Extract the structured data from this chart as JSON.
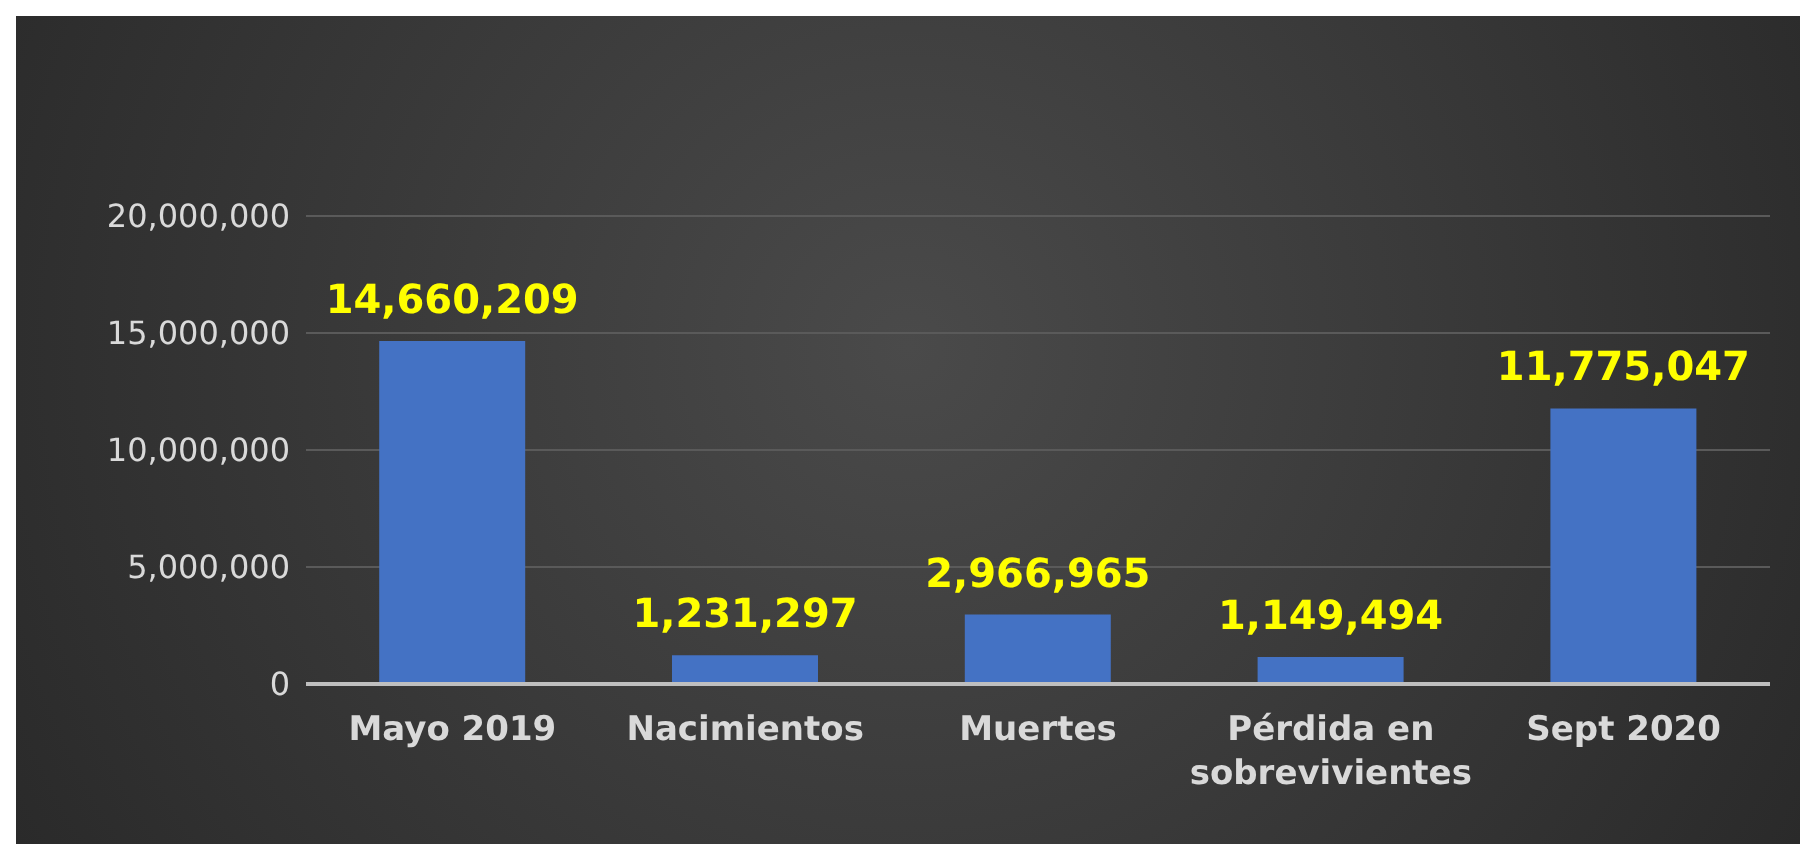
{
  "chart_data": {
    "type": "bar",
    "categories": [
      "Mayo 2019",
      "Nacimientos",
      "Muertes",
      "Pérdida en sobrevivientes",
      "Sept 2020"
    ],
    "values": [
      14660209,
      1231297,
      2966965,
      1149494,
      11775047
    ],
    "color": "#4472c4",
    "value_labels": [
      "14,660,209",
      "1,231,297",
      "2,966,965",
      "1,149,494",
      "11,775,047"
    ],
    "ylim": [
      0,
      20000000
    ],
    "yticks": [
      {
        "value": 0,
        "label": "0"
      },
      {
        "value": 5000000,
        "label": "5,000,000"
      },
      {
        "value": 10000000,
        "label": "10,000,000"
      },
      {
        "value": 15000000,
        "label": "15,000,000"
      },
      {
        "value": 20000000,
        "label": "20,000,000"
      }
    ],
    "grid": "y"
  }
}
